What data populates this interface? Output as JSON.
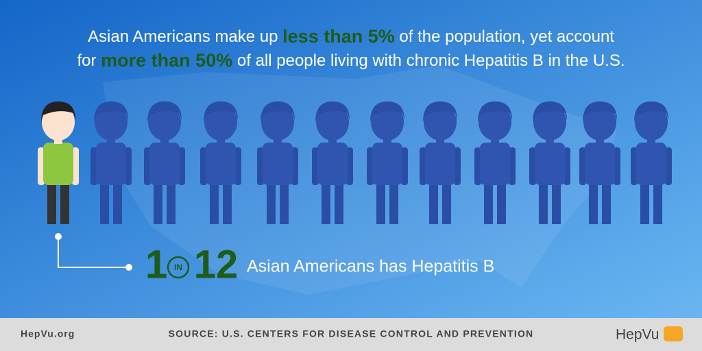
{
  "headline": {
    "line1": [
      "Asian Americans make up ",
      "less than 5%",
      " of the population, yet account"
    ],
    "line2": [
      "for ",
      "more than 50%",
      " of all people living with chronic Hepatitis B in the U.S."
    ]
  },
  "stat": {
    "numerator": "1",
    "connector": "IN",
    "denominator": "12",
    "caption": "Asian Americans has Hepatitis B"
  },
  "footer": {
    "site": "HepVu.org",
    "source": "SOURCE: U.S. CENTERS FOR DISEASE CONTROL AND PREVENTION",
    "logo": "HepVu"
  }
}
